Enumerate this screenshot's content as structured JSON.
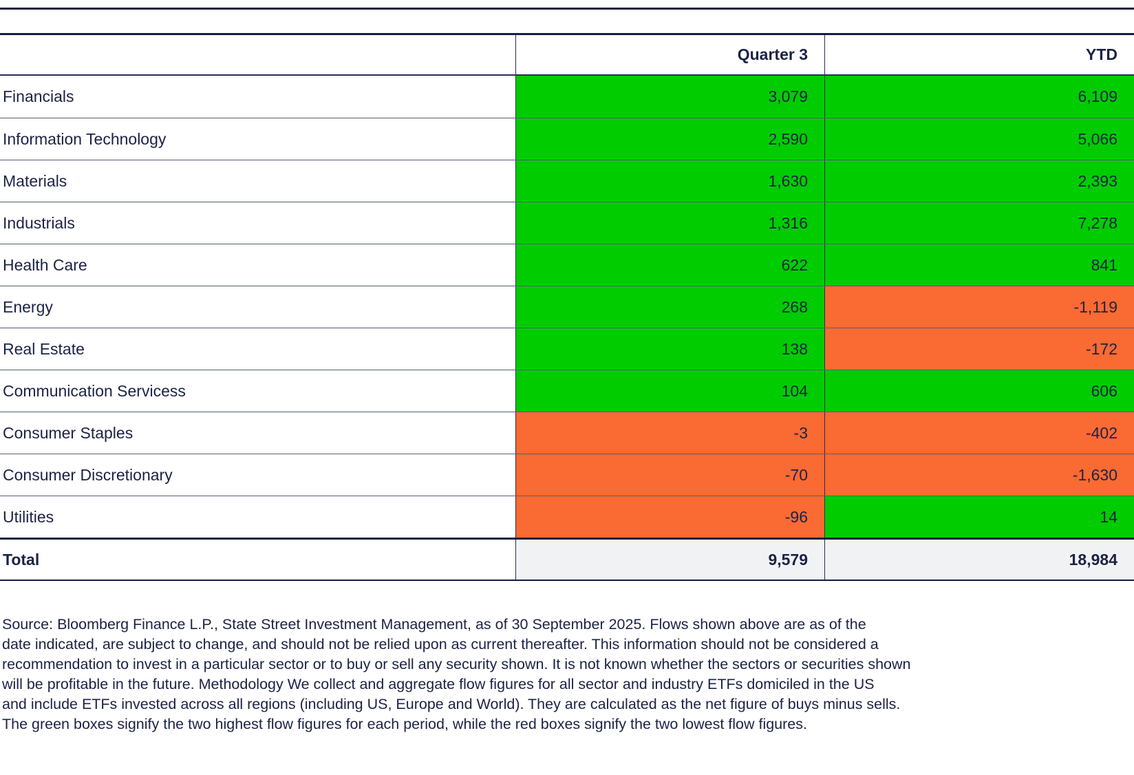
{
  "palette": {
    "positive_green": "#00cc00",
    "negative_orange": "#fa6a33",
    "total_row_bg": "#f1f2f4",
    "text_navy": "#1b2245"
  },
  "table": {
    "header": {
      "label": "",
      "q3": "Quarter 3",
      "ytd": "YTD"
    },
    "rows": [
      {
        "label": "Financials",
        "q3": "3,079",
        "q3_tone": "green",
        "ytd": "6,109",
        "ytd_tone": "green"
      },
      {
        "label": "Information Technology",
        "q3": "2,590",
        "q3_tone": "green",
        "ytd": "5,066",
        "ytd_tone": "green"
      },
      {
        "label": "Materials",
        "q3": "1,630",
        "q3_tone": "green",
        "ytd": "2,393",
        "ytd_tone": "green"
      },
      {
        "label": "Industrials",
        "q3": "1,316",
        "q3_tone": "green",
        "ytd": "7,278",
        "ytd_tone": "green"
      },
      {
        "label": "Health Care",
        "q3": "622",
        "q3_tone": "green",
        "ytd": "841",
        "ytd_tone": "green"
      },
      {
        "label": "Energy",
        "q3": "268",
        "q3_tone": "green",
        "ytd": "-1,119",
        "ytd_tone": "orange"
      },
      {
        "label": "Real Estate",
        "q3": "138",
        "q3_tone": "green",
        "ytd": "-172",
        "ytd_tone": "orange"
      },
      {
        "label": "Communication Servicess",
        "q3": "104",
        "q3_tone": "green",
        "ytd": "606",
        "ytd_tone": "green"
      },
      {
        "label": "Consumer Staples",
        "q3": "-3",
        "q3_tone": "orange",
        "ytd": "-402",
        "ytd_tone": "orange"
      },
      {
        "label": "Consumer Discretionary",
        "q3": "-70",
        "q3_tone": "orange",
        "ytd": "-1,630",
        "ytd_tone": "orange"
      },
      {
        "label": "Utilities",
        "q3": "-96",
        "q3_tone": "orange",
        "ytd": "14",
        "ytd_tone": "green"
      }
    ],
    "total": {
      "label": "Total",
      "q3": "9,579",
      "ytd": "18,984"
    }
  },
  "footnote": {
    "lines": [
      "Source: Bloomberg Finance L.P., State Street Investment Management, as of 30 September 2025. Flows shown above are as of the",
      "date indicated, are subject to change, and should not be relied upon as current thereafter. This information should not be considered a",
      "recommendation to invest in a particular sector or to buy or sell any security shown. It is not known whether the sectors or securities shown",
      "will be profitable in the future. Methodology We collect and aggregate flow figures for all sector and industry ETFs domiciled in the US",
      "and include ETFs invested across all regions (including US, Europe and World). They are calculated as the net figure of buys minus sells.",
      "The green boxes signify the two highest flow figures for each period, while the red boxes signify the two lowest flow figures."
    ]
  }
}
